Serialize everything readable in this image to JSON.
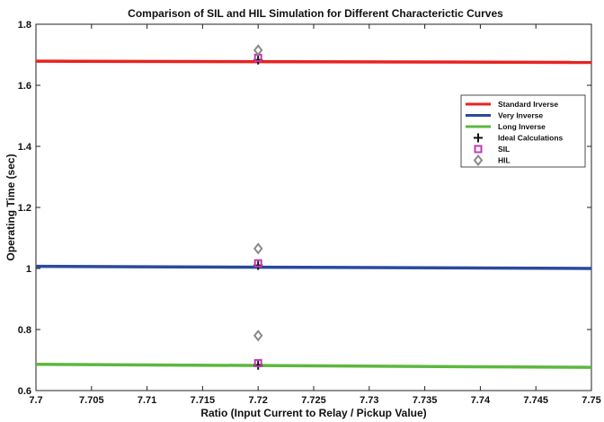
{
  "chart_data": {
    "type": "line",
    "title": "Comparison of SIL and HIL Simulation for Different Characterictic Curves",
    "xlabel": "Ratio (Input Current to Relay / Pickup Value)",
    "ylabel": "Operating Time (sec)",
    "xlim": [
      7.7,
      7.75
    ],
    "ylim": [
      0.6,
      1.8
    ],
    "xticks": [
      "7.7",
      "7.705",
      "7.71",
      "7.715",
      "7.72",
      "7.725",
      "7.73",
      "7.735",
      "7.74",
      "7.745",
      "7.75"
    ],
    "yticks": [
      "0.6",
      "0.8",
      "1",
      "1.2",
      "1.4",
      "1.6",
      "1.8"
    ],
    "grid": false,
    "legend_position": "top-right",
    "lines": [
      {
        "name": "Standard Irverse",
        "color": "#e8231f",
        "x": [
          7.7,
          7.75
        ],
        "y": [
          1.679,
          1.675
        ]
      },
      {
        "name": "Very Inverse",
        "color": "#2a4a9c",
        "x": [
          7.7,
          7.75
        ],
        "y": [
          1.007,
          1.0
        ]
      },
      {
        "name": "Long Inverse",
        "color": "#5cb83e",
        "x": [
          7.7,
          7.75
        ],
        "y": [
          0.686,
          0.676
        ]
      }
    ],
    "markers": [
      {
        "name": "Ideal Calculations",
        "symbol": "plus",
        "color": "#111111",
        "x": [
          7.72,
          7.72,
          7.72
        ],
        "y": [
          1.683,
          1.01,
          0.683
        ]
      },
      {
        "name": "SIL",
        "symbol": "square",
        "color": "#c23bb0",
        "x": [
          7.72,
          7.72,
          7.72
        ],
        "y": [
          1.69,
          1.017,
          0.69
        ]
      },
      {
        "name": "HIL",
        "symbol": "diamond",
        "color": "#8a8a8a",
        "x": [
          7.72,
          7.72,
          7.72
        ],
        "y": [
          1.715,
          1.065,
          0.78
        ]
      }
    ]
  }
}
